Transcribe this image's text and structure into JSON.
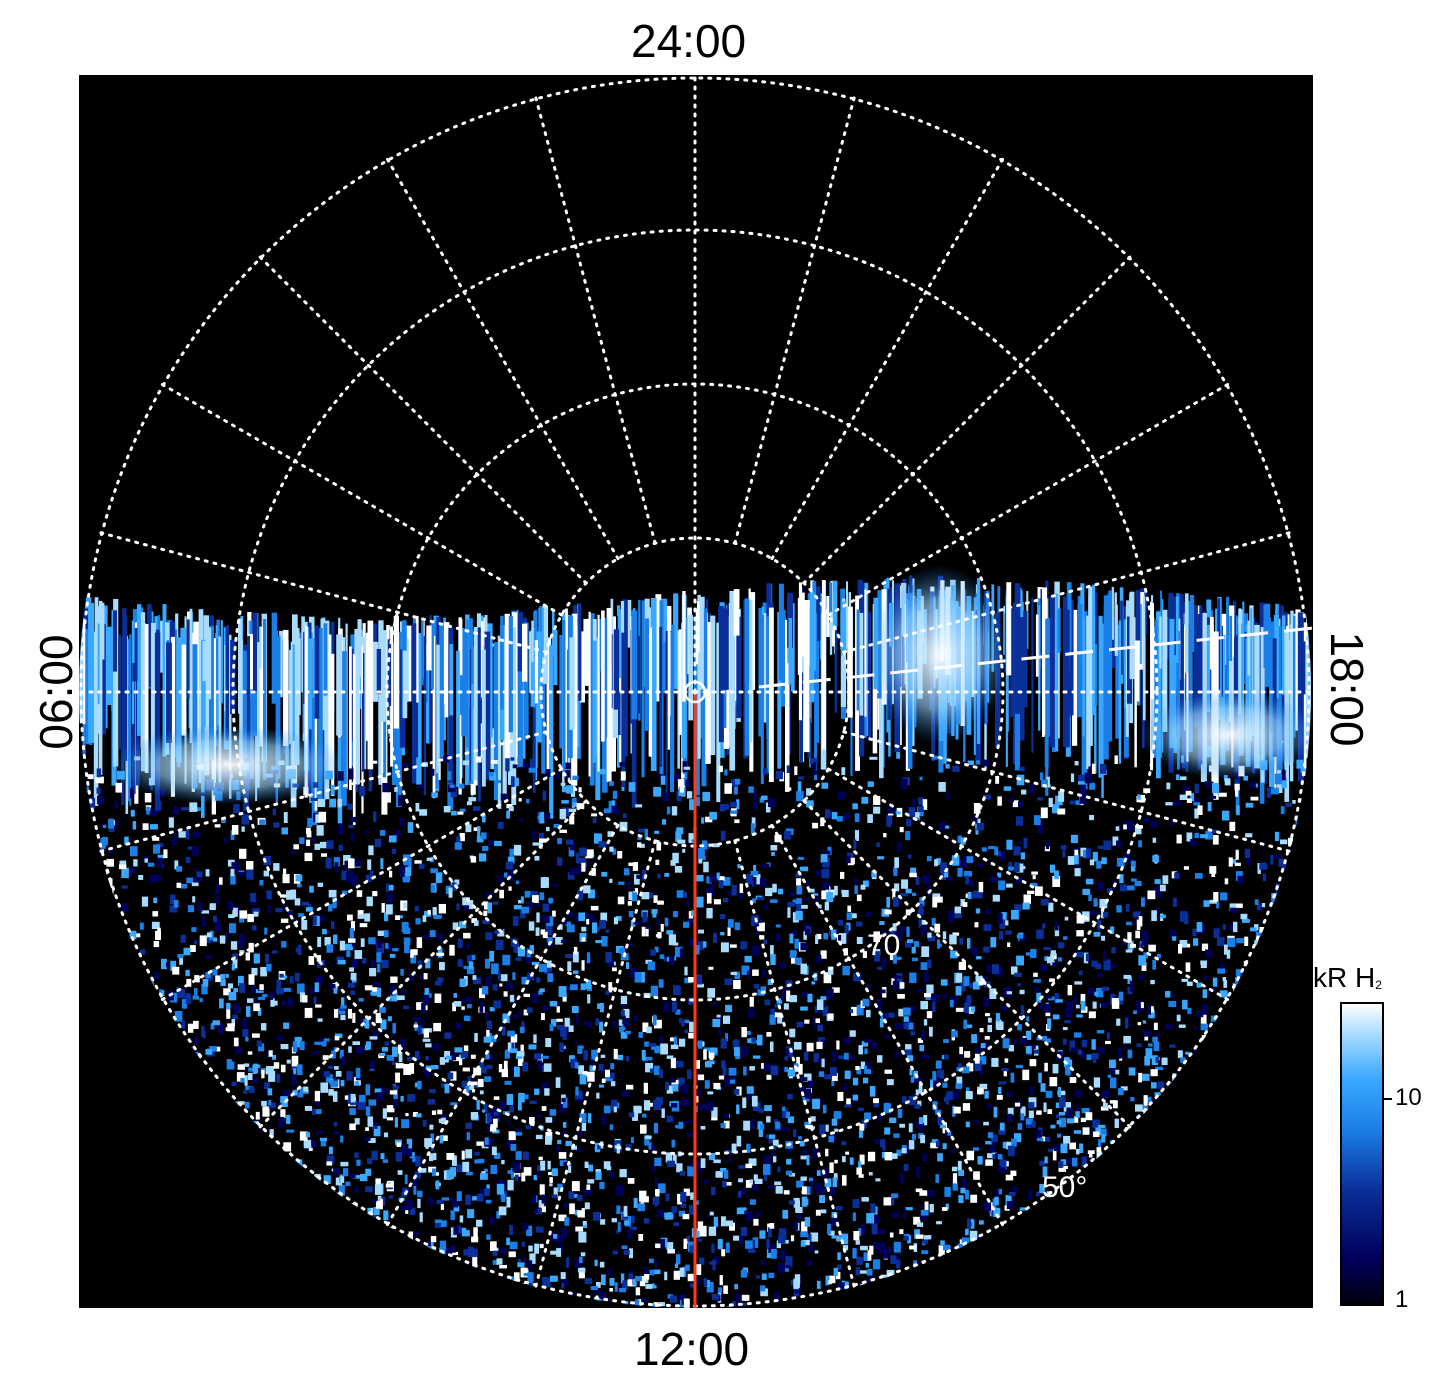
{
  "labels": {
    "top": "24:00",
    "bottom": "12:00",
    "left": "06:00",
    "right": "18:00"
  },
  "plot": {
    "background_color": "#000000",
    "grid_color": "#ffffff",
    "meridian_color": "#ff3b10",
    "latitude_labels": [
      "70",
      "50°"
    ]
  },
  "colorbar": {
    "title_main": "kR H",
    "title_sub": "2",
    "ticks": [
      "10",
      "1"
    ],
    "colors": [
      "#000010",
      "#00005a",
      "#0a2f99",
      "#1a7fe6",
      "#3aa8ff",
      "#a8dcff",
      "#ffffff"
    ]
  }
}
